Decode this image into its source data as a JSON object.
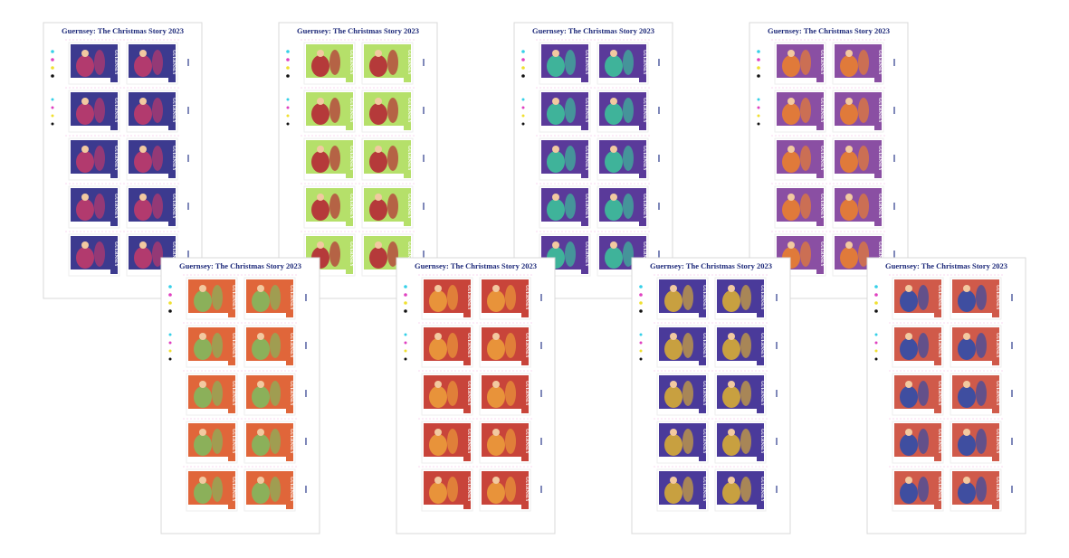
{
  "sheets": [
    {
      "title": "Guernsey: The Christmas Story 2023",
      "country": "GUERNSEY",
      "colors": [
        "#3c3a8f",
        "#b23a6e"
      ]
    },
    {
      "title": "Guernsey: The Christmas Story 2023",
      "country": "GUERNSEY",
      "colors": [
        "#b5e06a",
        "#b53a3a"
      ]
    },
    {
      "title": "Guernsey: The Christmas Story 2023",
      "country": "GUERNSEY",
      "colors": [
        "#5a3a9a",
        "#3fb39a"
      ]
    },
    {
      "title": "Guernsey: The Christmas Story 2023",
      "country": "GUERNSEY",
      "colors": [
        "#8a4fa3",
        "#e07a3a"
      ]
    },
    {
      "title": "Guernsey: The Christmas Story 2023",
      "country": "GUERNSEY",
      "colors": [
        "#e0663a",
        "#8bb05a"
      ]
    },
    {
      "title": "Guernsey: The Christmas Story 2023",
      "country": "GUERNSEY",
      "colors": [
        "#c8443a",
        "#e8933a"
      ]
    },
    {
      "title": "Guernsey: The Christmas Story 2023",
      "country": "GUERNSEY",
      "colors": [
        "#4a3a9a",
        "#c8a040"
      ]
    },
    {
      "title": "Guernsey: The Christmas Story 2023",
      "country": "GUERNSEY",
      "colors": [
        "#d05a4a",
        "#3f4ea0"
      ]
    }
  ]
}
